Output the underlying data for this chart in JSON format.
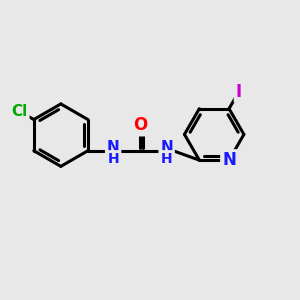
{
  "bg_color": "#e8e8e8",
  "atom_colors": {
    "C": "#000000",
    "N": "#1a1aff",
    "O": "#ff0000",
    "Cl": "#00aa00",
    "I": "#cc00cc",
    "H": "#000000"
  },
  "bond_color": "#000000",
  "bond_width": 2.2,
  "font_size": 11
}
